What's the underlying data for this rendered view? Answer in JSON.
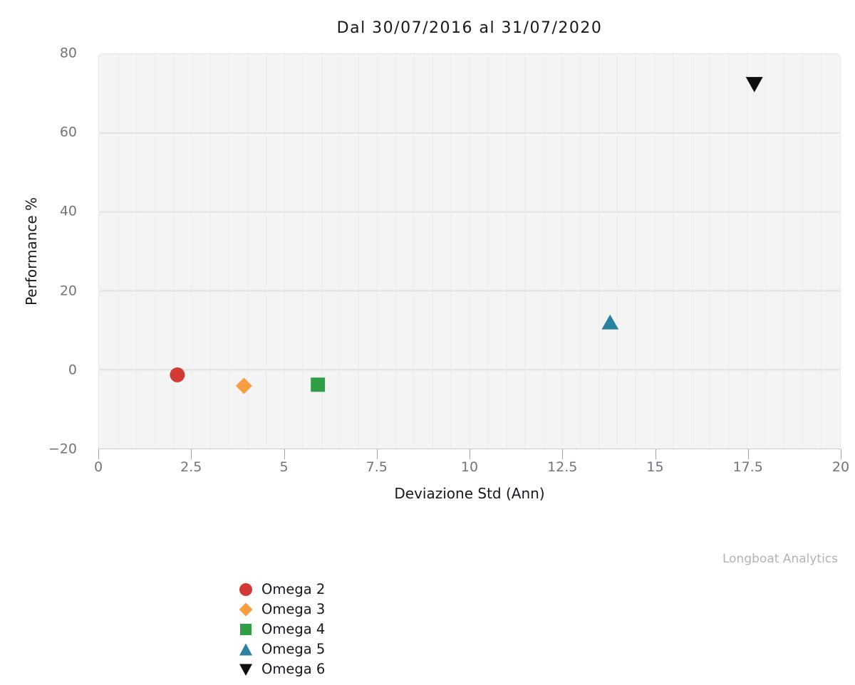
{
  "chart": {
    "title": "Dal 30/07/2016 al 31/07/2020",
    "watermark": "Longboat Analytics",
    "x_axis": {
      "title": "Deviazione Std (Ann)",
      "tick_values": [
        0,
        2.5,
        5,
        7.5,
        10,
        12.5,
        15,
        17.5,
        20
      ],
      "tick_labels": [
        "0",
        "2.5",
        "5",
        "7.5",
        "10",
        "12.5",
        "15",
        "17.5",
        "20"
      ]
    },
    "y_axis": {
      "title": "Performance %",
      "tick_values": [
        80,
        60,
        40,
        20,
        0,
        -20
      ],
      "tick_labels": [
        "80",
        "60",
        "40",
        "20",
        "0",
        "−20"
      ]
    }
  },
  "chart_data": {
    "type": "scatter",
    "title": "Dal 30/07/2016 al 31/07/2020",
    "xlabel": "Deviazione Std (Ann)",
    "ylabel": "Performance %",
    "xlim": [
      0,
      20
    ],
    "ylim": [
      -20,
      80
    ],
    "grid": true,
    "x_minor_step": 0.5,
    "legend_position": "bottom-left",
    "colors": {
      "plot_background": "#f4f4f5",
      "gridline_major": "#e2e2e3",
      "gridline_minor": "#ebebec",
      "axis_line": "#c6ccda",
      "tick_text": "#70757d"
    },
    "series": [
      {
        "name": "Omega 2",
        "symbol": "circle",
        "color": "#d23b34",
        "points": [
          {
            "x": 2.1,
            "y": -1.3
          }
        ]
      },
      {
        "name": "Omega 3",
        "symbol": "diamond",
        "color": "#f89d40",
        "points": [
          {
            "x": 3.9,
            "y": -4.1
          }
        ]
      },
      {
        "name": "Omega 4",
        "symbol": "square",
        "color": "#2f9e44",
        "points": [
          {
            "x": 5.9,
            "y": -3.8
          }
        ]
      },
      {
        "name": "Omega 5",
        "symbol": "triangle-up",
        "color": "#2a81a0",
        "points": [
          {
            "x": 13.8,
            "y": 12.0
          }
        ]
      },
      {
        "name": "Omega 6",
        "symbol": "triangle-down",
        "color": "#0e0e10",
        "points": [
          {
            "x": 17.7,
            "y": 72.4
          }
        ]
      }
    ]
  }
}
